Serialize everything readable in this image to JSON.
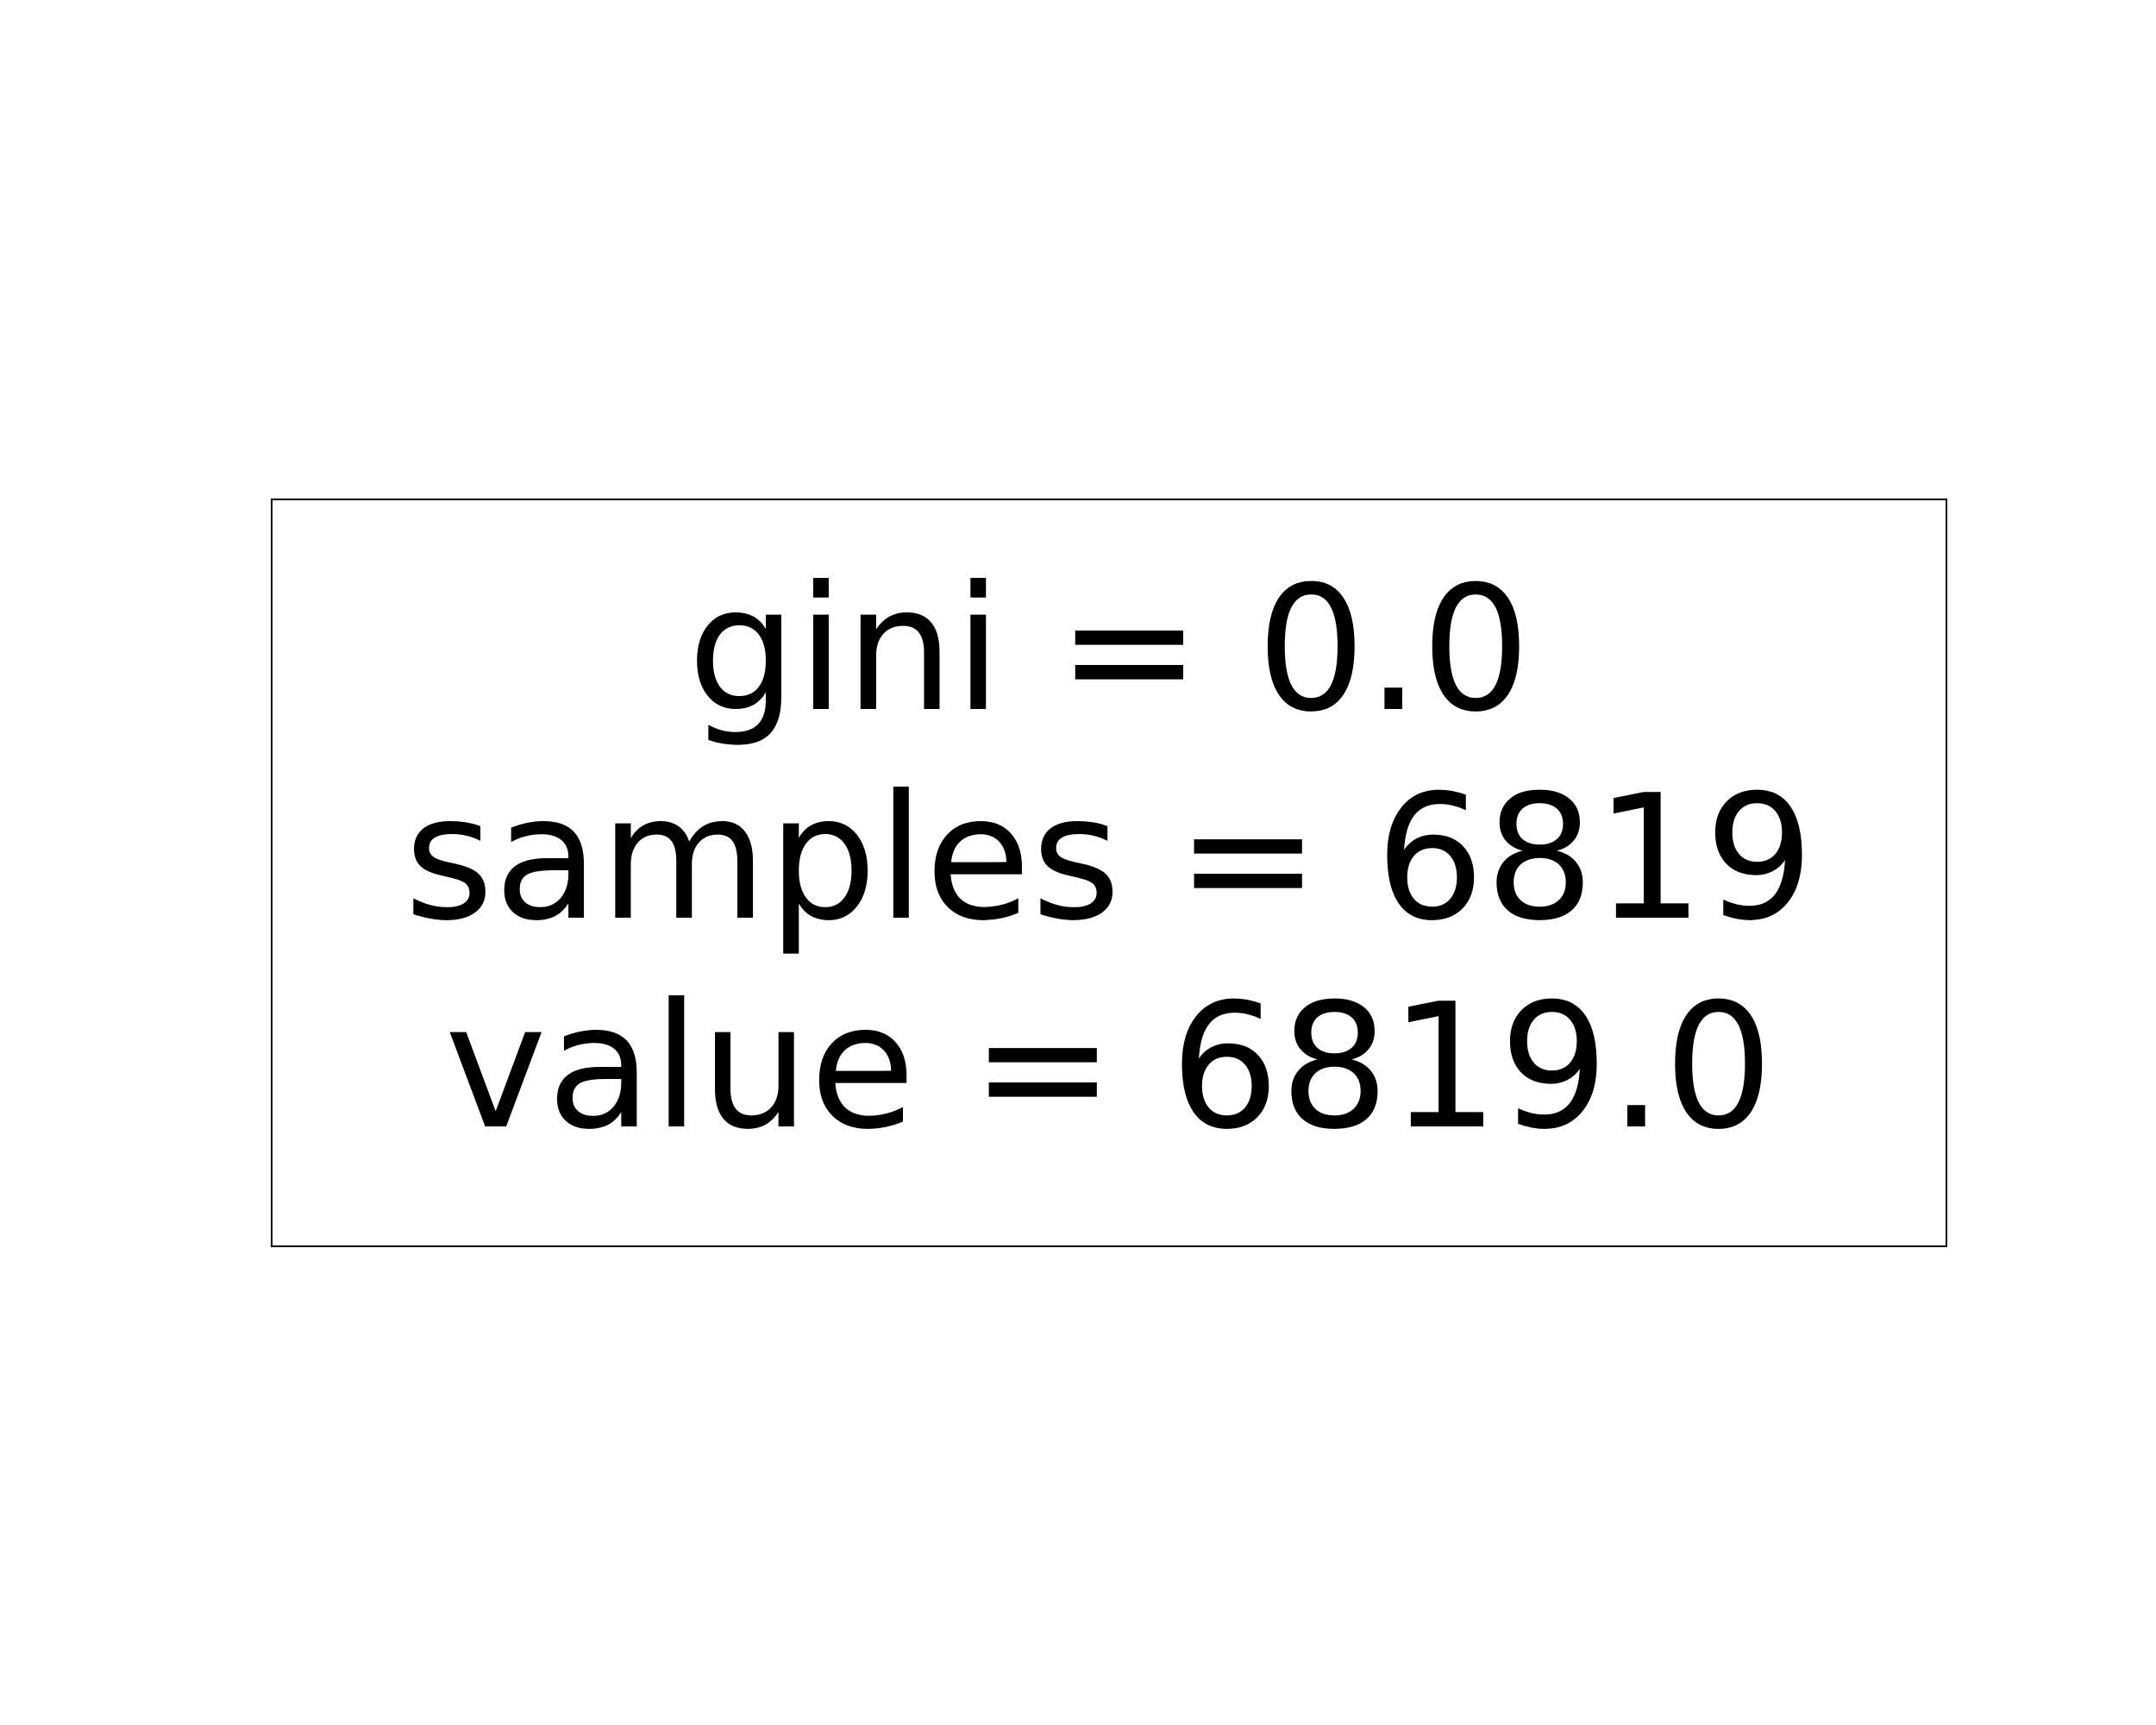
{
  "tree": {
    "nodes": [
      {
        "lines": {
          "gini": "gini = 0.0",
          "samples": "samples = 6819",
          "value": "value = 6819.0"
        },
        "gini": 0.0,
        "samples": 6819,
        "value": 6819.0
      }
    ]
  },
  "colors": {
    "background": "#ffffff",
    "border": "#000000",
    "text": "#000000"
  }
}
